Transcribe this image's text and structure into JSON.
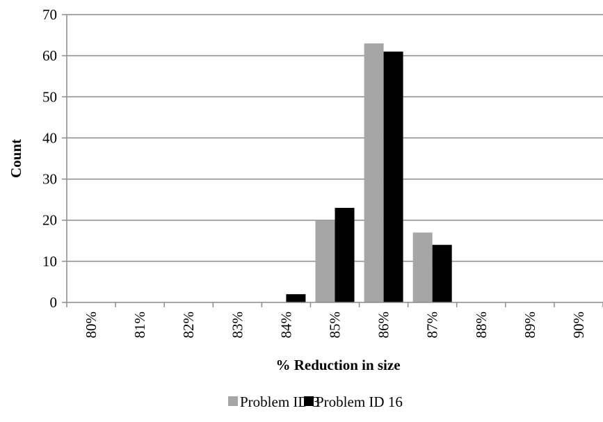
{
  "chart_data": {
    "type": "bar",
    "xlabel": "% Reduction in size",
    "ylabel": "Count",
    "categories": [
      "80%",
      "81%",
      "82%",
      "83%",
      "84%",
      "85%",
      "86%",
      "87%",
      "88%",
      "89%",
      "90%"
    ],
    "ylim": [
      0,
      70
    ],
    "yticks": [
      0,
      10,
      20,
      30,
      40,
      50,
      60,
      70
    ],
    "grid": "horizontal",
    "legend_position": "bottom",
    "series": [
      {
        "name": "Problem ID 3",
        "color": "#a6a6a6",
        "values": [
          0,
          0,
          0,
          0,
          0,
          20,
          63,
          17,
          0,
          0,
          0
        ]
      },
      {
        "name": "Problem ID 16",
        "color": "#000000",
        "values": [
          0,
          0,
          0,
          0,
          2,
          23,
          61,
          14,
          0,
          0,
          0
        ]
      }
    ]
  }
}
